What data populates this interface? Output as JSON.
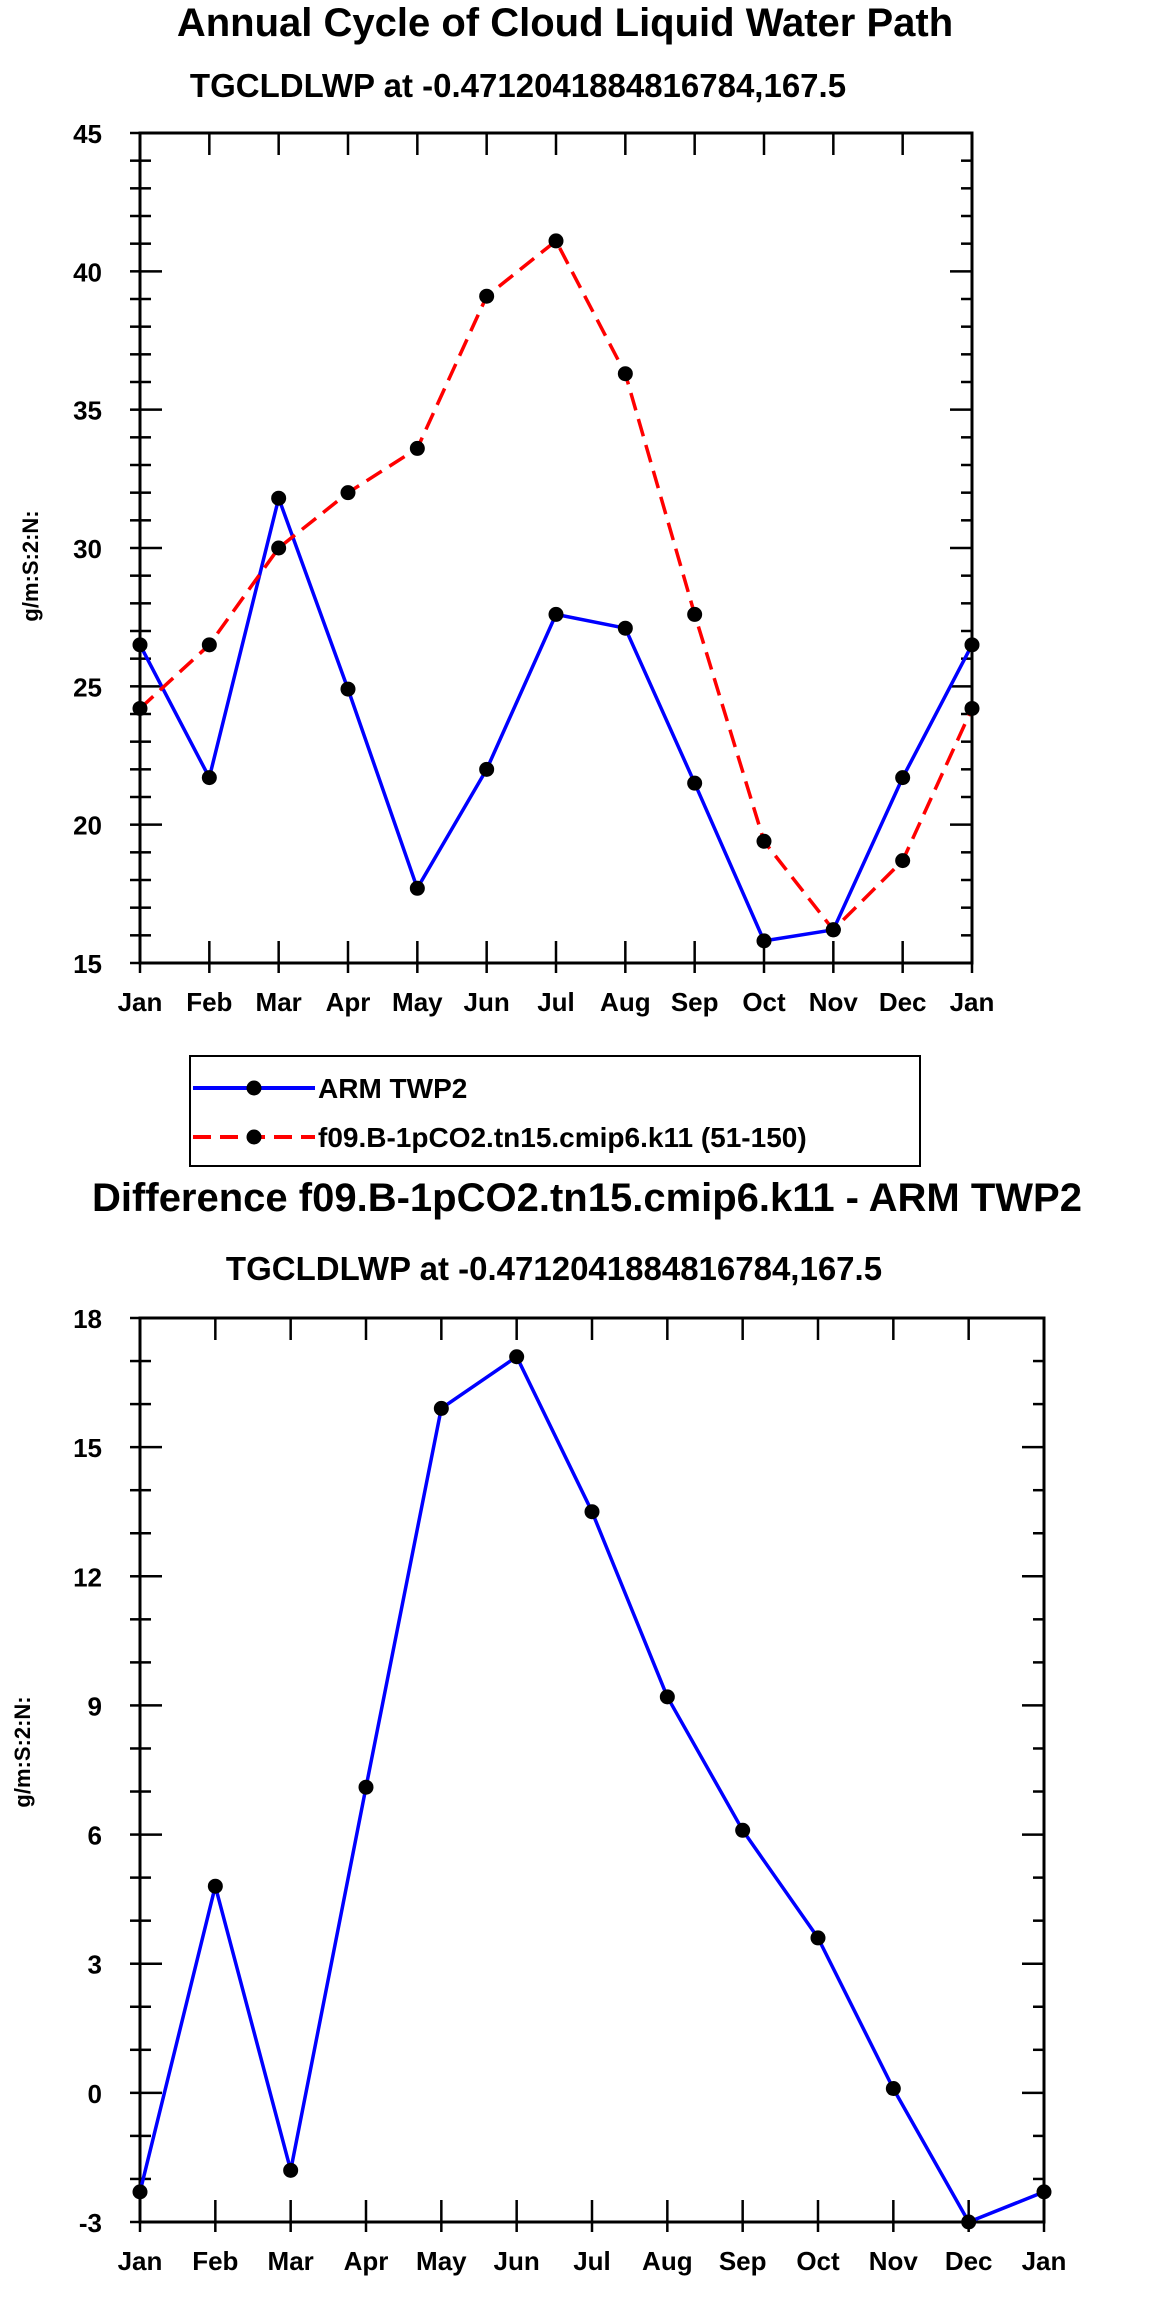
{
  "chart_data": [
    {
      "type": "line",
      "title": "Annual Cycle of Cloud Liquid Water Path",
      "subtitle": "TGCLDLWP at -0.4712041884816784,167.5",
      "ylabel": "g/m:S:2:N:",
      "xlabel": "",
      "categories": [
        "Jan",
        "Feb",
        "Mar",
        "Apr",
        "May",
        "Jun",
        "Jul",
        "Aug",
        "Sep",
        "Oct",
        "Nov",
        "Dec",
        "Jan"
      ],
      "ylim": [
        15,
        45
      ],
      "yticks": [
        15,
        20,
        25,
        30,
        35,
        40,
        45
      ],
      "series": [
        {
          "name": "ARM TWP2",
          "color": "#0000ff",
          "dash": "solid",
          "values": [
            26.5,
            21.7,
            31.8,
            24.9,
            17.7,
            22.0,
            27.6,
            27.1,
            21.5,
            15.8,
            16.2,
            21.7,
            26.5
          ]
        },
        {
          "name": "f09.B-1pCO2.tn15.cmip6.k11 (51-150)",
          "color": "#ff0000",
          "dash": "dashed",
          "values": [
            24.2,
            26.5,
            30.0,
            32.0,
            33.6,
            39.1,
            41.1,
            36.3,
            27.6,
            19.4,
            16.2,
            18.7,
            24.2
          ]
        }
      ],
      "legend": "bottom"
    },
    {
      "type": "line",
      "title": "Difference f09.B-1pCO2.tn15.cmip6.k11 - ARM TWP2",
      "subtitle": "TGCLDLWP at -0.4712041884816784,167.5",
      "ylabel": "g/m:S:2:N:",
      "xlabel": "",
      "categories": [
        "Jan",
        "Feb",
        "Mar",
        "Apr",
        "May",
        "Jun",
        "Jul",
        "Aug",
        "Sep",
        "Oct",
        "Nov",
        "Dec",
        "Jan"
      ],
      "ylim": [
        -3,
        18
      ],
      "yticks": [
        -3,
        0,
        3,
        6,
        9,
        12,
        15,
        18
      ],
      "series": [
        {
          "name": "Difference",
          "color": "#0000ff",
          "dash": "solid",
          "values": [
            -2.3,
            4.8,
            -1.8,
            7.1,
            15.9,
            17.1,
            13.5,
            9.2,
            6.1,
            3.6,
            0.1,
            -3.0,
            -2.3
          ]
        }
      ]
    }
  ]
}
